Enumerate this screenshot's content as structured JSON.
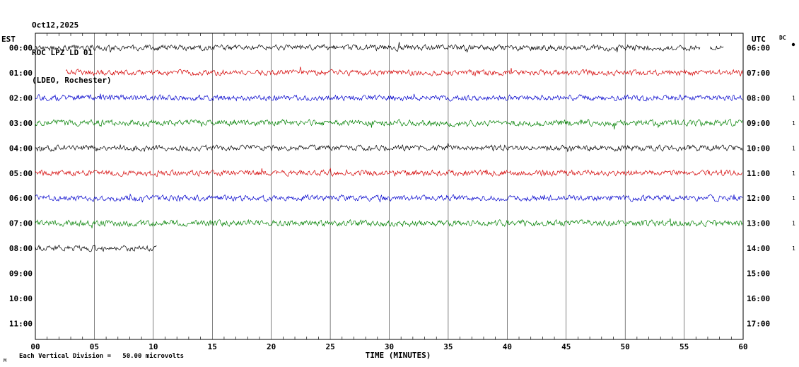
{
  "header": {
    "date": "Oct12,2025",
    "station": "ROC LPZ LD 01",
    "network": "(LDEO, Rochester)"
  },
  "axes": {
    "left_label": "EST",
    "right_label": "UTC",
    "x_label": "TIME (MINUTES)",
    "x_ticks": [
      "00",
      "05",
      "10",
      "15",
      "20",
      "25",
      "30",
      "35",
      "40",
      "45",
      "50",
      "55",
      "60"
    ]
  },
  "right_margin": {
    "dc_label": "DC",
    "row0_marker": true
  },
  "footer": {
    "scale_note": "Each Vertical Division =   50.00 microvolts",
    "corner_mark": "M"
  },
  "chart_data": {
    "type": "line",
    "subtype": "helicorder-seismogram",
    "title": "ROC LPZ LD 01 (LDEO, Rochester) Oct12,2025",
    "xlabel": "TIME (MINUTES)",
    "x_range_minutes": [
      0,
      60
    ],
    "x_tick_interval_minutes": 5,
    "minutes_per_row": 60,
    "vertical_division_units": "50.00 microvolts",
    "grid": true,
    "rows": [
      {
        "est": "00:00",
        "utc": "06:00",
        "color": "#000000",
        "segments": [
          [
            0,
            56.4
          ],
          [
            57.2,
            58.4
          ]
        ],
        "amp": 1.0,
        "gain_label": ""
      },
      {
        "est": "01:00",
        "utc": "07:00",
        "color": "#d40000",
        "segments": [
          [
            2.6,
            60
          ]
        ],
        "amp": 1.0,
        "gain_label": ""
      },
      {
        "est": "02:00",
        "utc": "08:00",
        "color": "#0000cc",
        "segments": [
          [
            0,
            60
          ]
        ],
        "amp": 1.0,
        "gain_label": "1"
      },
      {
        "est": "03:00",
        "utc": "09:00",
        "color": "#008000",
        "segments": [
          [
            0,
            60
          ]
        ],
        "amp": 1.1,
        "gain_label": "1"
      },
      {
        "est": "04:00",
        "utc": "10:00",
        "color": "#000000",
        "segments": [
          [
            0,
            60
          ]
        ],
        "amp": 1.0,
        "gain_label": "1"
      },
      {
        "est": "05:00",
        "utc": "11:00",
        "color": "#d40000",
        "segments": [
          [
            0,
            60
          ]
        ],
        "amp": 1.0,
        "gain_label": "1"
      },
      {
        "est": "06:00",
        "utc": "12:00",
        "color": "#0000cc",
        "segments": [
          [
            0,
            60
          ]
        ],
        "amp": 1.0,
        "gain_label": "1"
      },
      {
        "est": "07:00",
        "utc": "13:00",
        "color": "#008000",
        "segments": [
          [
            0,
            60
          ]
        ],
        "amp": 1.1,
        "gain_label": "1"
      },
      {
        "est": "08:00",
        "utc": "14:00",
        "color": "#000000",
        "segments": [
          [
            0,
            10.3
          ]
        ],
        "amp": 1.0,
        "gain_label": "1"
      },
      {
        "est": "09:00",
        "utc": "15:00",
        "color": "#d40000",
        "segments": [],
        "amp": 0,
        "gain_label": ""
      },
      {
        "est": "10:00",
        "utc": "16:00",
        "color": "#0000cc",
        "segments": [],
        "amp": 0,
        "gain_label": ""
      },
      {
        "est": "11:00",
        "utc": "17:00",
        "color": "#008000",
        "segments": [],
        "amp": 0,
        "gain_label": ""
      }
    ]
  }
}
